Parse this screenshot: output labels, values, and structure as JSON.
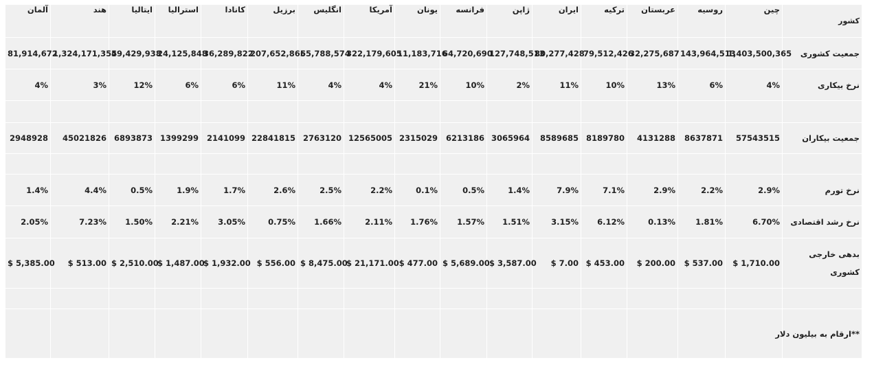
{
  "table": {
    "columns": [
      "کشور",
      "چین",
      "روسیه",
      "عربستان",
      "ترکیه",
      "ایران",
      "ژاپن",
      "فرانسه",
      "یونان",
      "آمریکا",
      "انگلیس",
      "برزیل",
      "کانادا",
      "استرالیا",
      "ایتالیا",
      "هند",
      "آلمان"
    ],
    "population": {
      "label": "جمعیت کشوری",
      "values": [
        "1,403,500,365",
        "143,964,513",
        "32,275,687",
        "79,512,426",
        "80,277,428",
        "127,748,513",
        "64,720,690",
        "11,183,716",
        "322,179,605",
        "65,788,574",
        "207,652,865",
        "36,289,822",
        "24,125,848",
        "59,429,938",
        "1,324,171,354",
        "81,914,672"
      ]
    },
    "unemployment_rate": {
      "label": "نرخ بیکاری",
      "values": [
        "4%",
        "6%",
        "13%",
        "10%",
        "11%",
        "2%",
        "10%",
        "21%",
        "4%",
        "4%",
        "11%",
        "6%",
        "6%",
        "12%",
        "3%",
        "4%"
      ]
    },
    "unemployed": {
      "label": "جمعیت بیکاران",
      "values": [
        "57543515",
        "8637871",
        "4131288",
        "8189780",
        "8589685",
        "3065964",
        "6213186",
        "2315029",
        "12565005",
        "2763120",
        "22841815",
        "2141099",
        "1399299",
        "6893873",
        "45021826",
        "2948928"
      ]
    },
    "inflation": {
      "label": "نرخ تورم",
      "values": [
        "2.9%",
        "2.2%",
        "2.9%",
        "7.1%",
        "7.9%",
        "1.4%",
        "0.5%",
        "0.1%",
        "2.2%",
        "2.5%",
        "2.6%",
        "1.7%",
        "1.9%",
        "0.5%",
        "4.4%",
        "1.4%"
      ]
    },
    "gdp_growth": {
      "label": "نرخ رشد اقتصادی",
      "values": [
        "6.70%",
        "1.81%",
        "0.13%",
        "6.12%",
        "3.15%",
        "1.51%",
        "1.57%",
        "1.76%",
        "2.11%",
        "1.66%",
        "0.75%",
        "3.05%",
        "2.21%",
        "1.50%",
        "7.23%",
        "2.05%"
      ]
    },
    "external_debt": {
      "label": "بدهی خارجی کشوری",
      "values": [
        "$ 1,710.00",
        "$ 537.00",
        "$ 200.00",
        "$ 453.00",
        "$ 7.00",
        "$ 3,587.00",
        "$ 5,689.00",
        "$ 477.00",
        "$ 21,171.00",
        "$ 8,475.00",
        "$ 556.00",
        "$ 1,932.00",
        "$ 1,487.00",
        "$ 2,510.00",
        "$ 513.00",
        "$ 5,385.00"
      ]
    },
    "note": "**ارقام به بیلیون دلار"
  }
}
